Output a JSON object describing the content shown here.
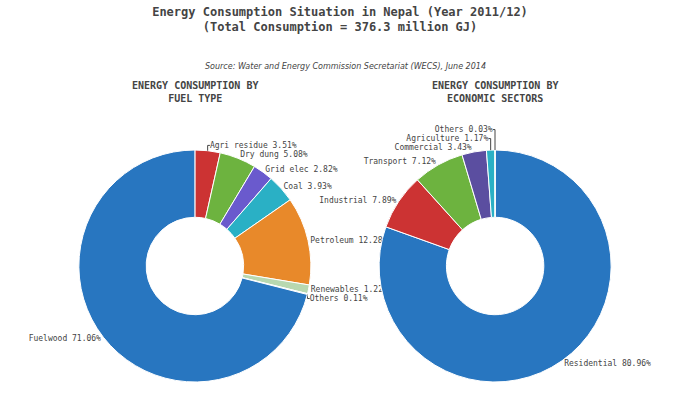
{
  "title": "Energy Consumption Situation in Nepal (Year 2011/12)",
  "subtitle": "(Total Consumption = 376.3 million GJ)",
  "annotations": [
    "Source: Water and Energy Commission Secretariat (WECS), June 2014"
  ],
  "chart_data": [
    {
      "type": "pie",
      "title": "ENERGY CONSUMPTION BY\nFUEL TYPE",
      "categories": [
        "Agri residue 3.51%",
        "Dry dung 5.08%",
        "Grid elec 2.82%",
        "Coal 3.93%",
        "Petroleum 12.28%",
        "Renewables 1.22%",
        "Others 0.11%",
        "Fuelwood 71.06%"
      ],
      "values": [
        3.51,
        5.08,
        2.82,
        3.93,
        12.28,
        1.22,
        0.11,
        71.06
      ],
      "colors": [
        "#cc3333",
        "#6db33f",
        "#6a5acd",
        "#2ab0c5",
        "#e8892a",
        "#b8d8b0",
        "#c8d8e8",
        "#2876c0"
      ]
    },
    {
      "type": "pie",
      "title": "ENERGY CONSUMPTION BY\nECONOMIC SECTORS",
      "categories": [
        "Residential 80.96%",
        "Industrial 7.89%",
        "Transport 7.12%",
        "Commercial 3.43%",
        "Agriculture 1.17%",
        "Others 0.03%"
      ],
      "values": [
        80.96,
        7.89,
        7.12,
        3.43,
        1.17,
        0.03
      ],
      "colors": [
        "#2876c0",
        "#cc3333",
        "#6db33f",
        "#5b4ea0",
        "#2ab0c5",
        "#3399cc"
      ]
    }
  ]
}
